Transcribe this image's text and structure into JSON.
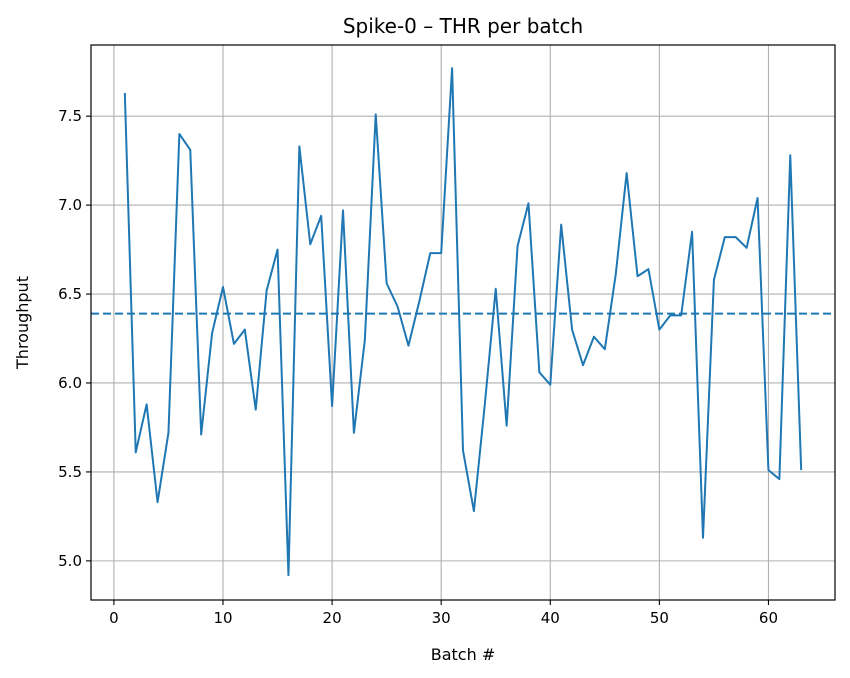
{
  "chart_data": {
    "type": "line",
    "title": "Spike-0 – THR per batch",
    "xlabel": "Batch #",
    "ylabel": "Throughput",
    "xlim": [
      -2.1,
      66.1
    ],
    "ylim": [
      4.78,
      7.9
    ],
    "x_ticks": [
      0,
      10,
      20,
      30,
      40,
      50,
      60
    ],
    "x_tick_labels": [
      "0",
      "10",
      "20",
      "30",
      "40",
      "50",
      "60"
    ],
    "y_ticks": [
      5.0,
      5.5,
      6.0,
      6.5,
      7.0,
      7.5
    ],
    "y_tick_labels": [
      "5.0",
      "5.5",
      "6.0",
      "6.5",
      "7.0",
      "7.5"
    ],
    "grid": true,
    "colors": {
      "line": "#1f77b4",
      "grid": "#b0b0b0",
      "axes": "#000000"
    },
    "series": [
      {
        "x": [
          1,
          2,
          3,
          4,
          5,
          6,
          7,
          8,
          9,
          10,
          11,
          12,
          13,
          14,
          15,
          16,
          17,
          18,
          19,
          20,
          21,
          22,
          23,
          24,
          25,
          26,
          27,
          28,
          29,
          30,
          31,
          32,
          33,
          34,
          35,
          36,
          37,
          38,
          39,
          40,
          41,
          42,
          43,
          44,
          45,
          46,
          47,
          48,
          49,
          50,
          51,
          52,
          53,
          54,
          55,
          56,
          57,
          58,
          59,
          60,
          61,
          62,
          63
        ],
        "values": [
          7.63,
          5.61,
          5.88,
          5.33,
          5.72,
          7.4,
          7.31,
          5.71,
          6.28,
          6.54,
          6.22,
          6.3,
          5.85,
          6.52,
          6.75,
          4.92,
          7.33,
          6.78,
          6.94,
          5.87,
          6.97,
          5.72,
          6.24,
          7.51,
          6.56,
          6.43,
          6.21,
          6.46,
          6.73,
          6.73,
          7.77,
          5.62,
          5.28,
          5.88,
          6.53,
          5.76,
          6.77,
          7.01,
          6.06,
          5.99,
          6.89,
          6.3,
          6.1,
          6.26,
          6.19,
          6.61,
          7.18,
          6.6,
          6.64,
          6.3,
          6.38,
          6.38,
          6.85,
          5.13,
          6.58,
          6.82,
          6.82,
          6.76,
          7.04,
          5.51,
          5.46,
          7.28,
          5.51
        ]
      }
    ],
    "reference_lines": [
      {
        "y": 6.39,
        "style": "dashed"
      }
    ]
  }
}
